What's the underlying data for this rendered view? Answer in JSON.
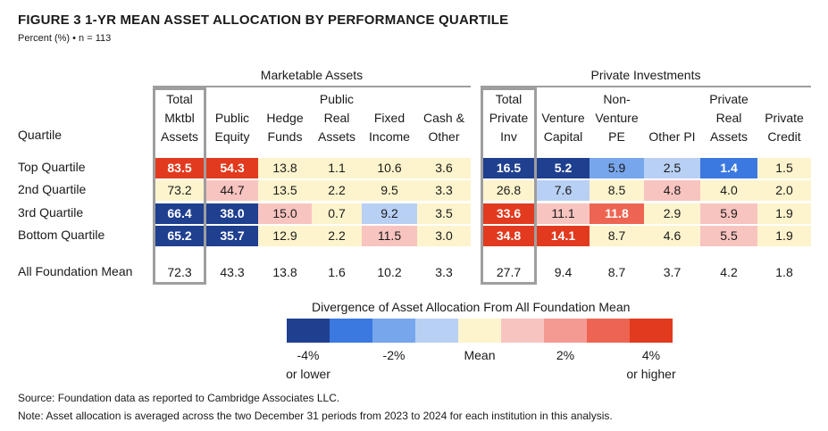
{
  "title": "FIGURE 3  1-YR MEAN ASSET ALLOCATION BY PERFORMANCE QUARTILE",
  "subtitle": "Percent (%) • n = 113",
  "groups": {
    "marketable": "Marketable Assets",
    "private": "Private Investments"
  },
  "quartile_header": "Quartile",
  "colors": {
    "minus4": "#1f3f8f",
    "minus3": "#3b78e0",
    "minus2": "#77a6ec",
    "minus1": "#b8d0f4",
    "mean": "#fdf4cd",
    "plus1": "#f8c4c0",
    "plus2": "#f49a92",
    "plus3": "#ed6552",
    "plus4": "#e23a1f"
  },
  "chart_data": {
    "type": "table",
    "columns": [
      "Total\nMktbl\nAssets",
      "Public\nEquity",
      "Hedge\nFunds",
      "Public\nReal\nAssets",
      "Fixed\nIncome",
      "Cash &\nOther",
      "Total\nPrivate\nInv",
      "Venture\nCapital",
      "Non-\nVenture\nPE",
      "Other PI",
      "Private\nReal\nAssets",
      "Private\nCredit"
    ],
    "rows": [
      {
        "label": "Top Quartile",
        "values": [
          "83.5",
          "54.3",
          "13.8",
          "1.1",
          "10.6",
          "3.6",
          "16.5",
          "5.2",
          "5.9",
          "2.5",
          "1.4",
          "1.5"
        ],
        "shades": [
          "plus4",
          "plus4",
          "mean",
          "mean",
          "mean",
          "mean",
          "minus4",
          "minus4",
          "minus2",
          "minus1",
          "minus3",
          "mean"
        ]
      },
      {
        "label": "2nd Quartile",
        "values": [
          "73.2",
          "44.7",
          "13.5",
          "2.2",
          "9.5",
          "3.3",
          "26.8",
          "7.6",
          "8.5",
          "4.8",
          "4.0",
          "2.0"
        ],
        "shades": [
          "mean",
          "plus1",
          "mean",
          "mean",
          "mean",
          "mean",
          "mean",
          "minus1",
          "mean",
          "plus1",
          "mean",
          "mean"
        ]
      },
      {
        "label": "3rd Quartile",
        "values": [
          "66.4",
          "38.0",
          "15.0",
          "0.7",
          "9.2",
          "3.5",
          "33.6",
          "11.1",
          "11.8",
          "2.9",
          "5.9",
          "1.9"
        ],
        "shades": [
          "minus4",
          "minus4",
          "plus1",
          "mean",
          "minus1",
          "mean",
          "plus4",
          "plus1",
          "plus3",
          "mean",
          "plus1",
          "mean"
        ]
      },
      {
        "label": "Bottom Quartile",
        "values": [
          "65.2",
          "35.7",
          "12.9",
          "2.2",
          "11.5",
          "3.0",
          "34.8",
          "14.1",
          "8.7",
          "4.6",
          "5.5",
          "1.9"
        ],
        "shades": [
          "minus4",
          "minus4",
          "mean",
          "mean",
          "plus1",
          "mean",
          "plus4",
          "plus4",
          "mean",
          "mean",
          "plus1",
          "mean"
        ]
      }
    ],
    "mean_row": {
      "label": "All Foundation Mean",
      "values": [
        "72.3",
        "43.3",
        "13.8",
        "1.6",
        "10.2",
        "3.3",
        "27.7",
        "9.4",
        "8.7",
        "3.7",
        "4.2",
        "1.8"
      ]
    }
  },
  "legend": {
    "title": "Divergence of Asset Allocation From All Foundation Mean",
    "boxes": [
      "minus4",
      "minus3",
      "minus2",
      "minus1",
      "mean",
      "plus1",
      "plus2",
      "plus3",
      "plus4"
    ],
    "labels": [
      "-4%\nor lower",
      "-2%",
      "Mean",
      "2%",
      "4%\nor higher"
    ]
  },
  "notes": {
    "source": "Source: Foundation data as reported to Cambridge Associates LLC.",
    "note": "Note: Asset allocation is averaged across the two December 31 periods from 2023 to 2024 for each institution in this analysis."
  }
}
